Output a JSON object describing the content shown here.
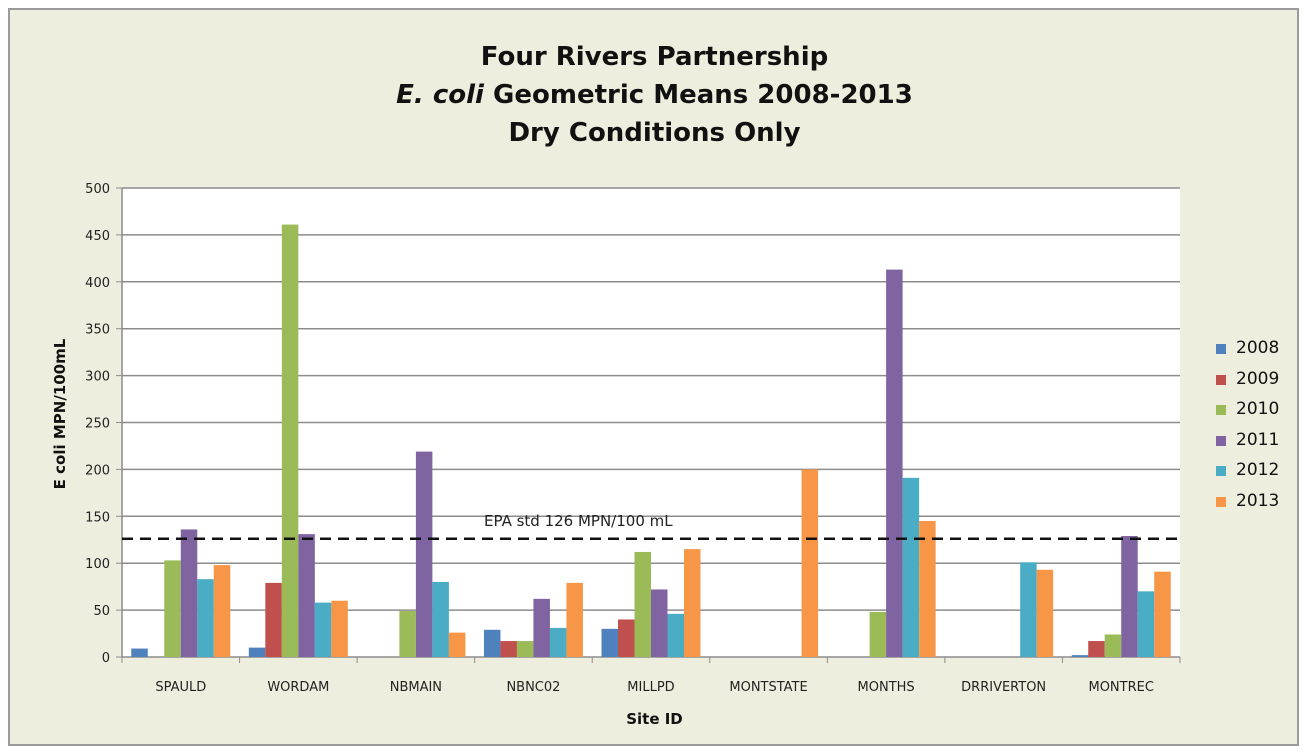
{
  "chart_data": {
    "type": "bar",
    "title_lines": [
      {
        "italic": "",
        "rest": "Four Rivers Partnership"
      },
      {
        "italic": "E. coli",
        "rest": " Geometric Means 2008-2013"
      },
      {
        "italic": "",
        "rest": "Dry Conditions Only"
      }
    ],
    "xlabel": "Site ID",
    "ylabel": "E coli MPN/100mL",
    "ylim": [
      0,
      500
    ],
    "yticks": [
      0,
      50,
      100,
      150,
      200,
      250,
      300,
      350,
      400,
      450,
      500
    ],
    "grid": true,
    "legend_position": "right",
    "categories": [
      "SPAULD",
      "WORDAM",
      "NBMAIN",
      "NBNC02",
      "MILLPD",
      "MONTSTATE",
      "MONTHS",
      "DRRIVERTON",
      "MONTREC"
    ],
    "series": [
      {
        "name": "2008",
        "color": "#4f81bd",
        "values": [
          9,
          10,
          null,
          29,
          30,
          null,
          null,
          null,
          2
        ]
      },
      {
        "name": "2009",
        "color": "#c0504d",
        "values": [
          null,
          79,
          null,
          17,
          40,
          null,
          null,
          null,
          17
        ]
      },
      {
        "name": "2010",
        "color": "#9bbb59",
        "values": [
          103,
          461,
          49,
          17,
          112,
          null,
          48,
          null,
          24
        ]
      },
      {
        "name": "2011",
        "color": "#8064a2",
        "values": [
          136,
          131,
          219,
          62,
          72,
          null,
          413,
          null,
          129
        ]
      },
      {
        "name": "2012",
        "color": "#4bacc6",
        "values": [
          83,
          58,
          80,
          31,
          46,
          null,
          191,
          101,
          70
        ]
      },
      {
        "name": "2013",
        "color": "#f79646",
        "values": [
          98,
          60,
          26,
          79,
          115,
          200,
          145,
          93,
          91
        ]
      }
    ],
    "reference_line": {
      "value": 126,
      "label": "EPA std 126 MPN/100 mL"
    }
  }
}
